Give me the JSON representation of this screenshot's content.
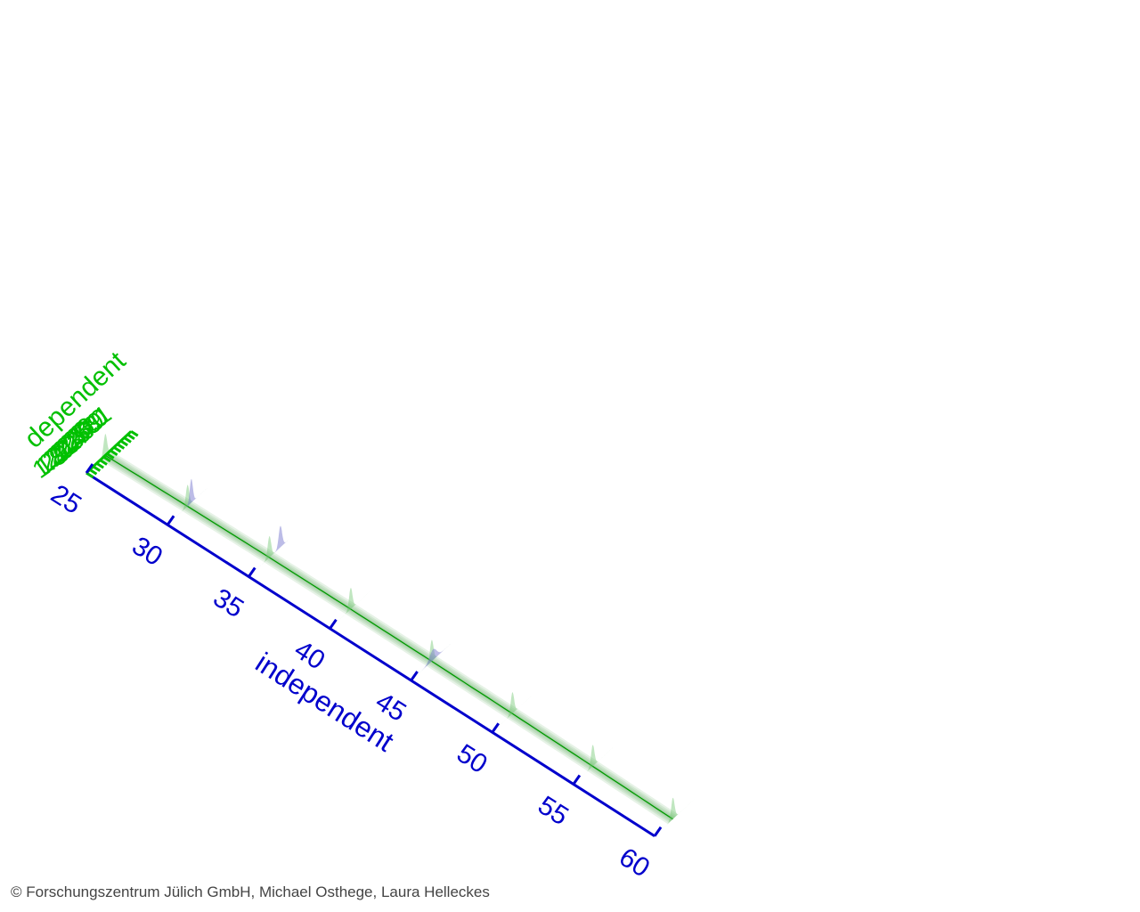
{
  "colors": {
    "dependent_axis": "#00c000",
    "independent_axis": "#0000cc",
    "likelihood_fill": "#6ac36a",
    "band": "#3a9a3a",
    "mean_line": "#009a00",
    "observation_fill": "#7a7ad0",
    "background": "#ffffff"
  },
  "chart_data": {
    "type": "area",
    "view": "3d-oblique",
    "x_axis": {
      "label": "independent",
      "range": [
        25,
        60
      ],
      "ticks": [
        25,
        30,
        35,
        40,
        45,
        50,
        55,
        60
      ],
      "tick_labels": [
        "25",
        "30",
        "35",
        "40",
        "45",
        "50",
        "55",
        "60"
      ]
    },
    "y_axis": {
      "label": "dependent",
      "range": [
        1.8,
        3.1
      ],
      "ticks": [
        1.8,
        1.9,
        2.0,
        2.1,
        2.2,
        2.3,
        2.4,
        2.5,
        2.6,
        2.7,
        2.8,
        2.9,
        3.0,
        3.1
      ],
      "tick_labels": [
        "1.8",
        "1.9",
        "2.0",
        "2.1",
        "2.2",
        "2.3",
        "2.4",
        "2.5",
        "2.6",
        "2.7",
        "2.8",
        "2.9",
        "3.0",
        "3.1"
      ]
    },
    "mean_curve": {
      "x": [
        25,
        30,
        35,
        40,
        45,
        50,
        55,
        60
      ],
      "y": [
        2.35,
        2.38,
        2.4,
        2.405,
        2.4,
        2.385,
        2.36,
        2.33
      ]
    },
    "likelihood_distributions": [
      {
        "x": 25,
        "mean": 2.35,
        "sd": 0.05
      },
      {
        "x": 30,
        "mean": 2.38,
        "sd": 0.05
      },
      {
        "x": 35,
        "mean": 2.4,
        "sd": 0.05
      },
      {
        "x": 40,
        "mean": 2.405,
        "sd": 0.05
      },
      {
        "x": 45,
        "mean": 2.4,
        "sd": 0.05
      },
      {
        "x": 50,
        "mean": 2.385,
        "sd": 0.05
      },
      {
        "x": 55,
        "mean": 2.36,
        "sd": 0.05
      },
      {
        "x": 60,
        "mean": 2.33,
        "sd": 0.05
      }
    ],
    "observation_distributions": [
      {
        "x": 30,
        "mean": 2.49,
        "sd": 0.045
      },
      {
        "x": 35,
        "mean": 2.72,
        "sd": 0.05
      },
      {
        "x": 45,
        "mean": 2.44,
        "sd": 0.1
      }
    ],
    "grid": false,
    "legend": "none"
  },
  "copyright": "© Forschungszentrum Jülich GmbH, Michael Osthege, Laura Helleckes"
}
